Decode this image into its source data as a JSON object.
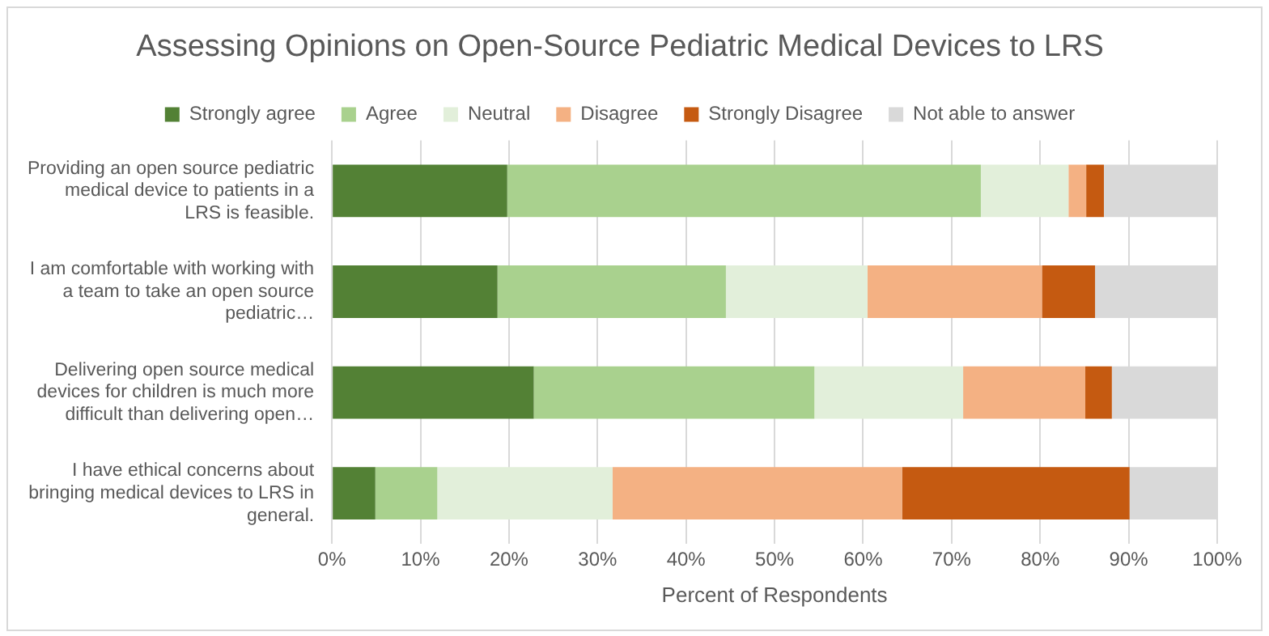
{
  "chart_data": {
    "type": "bar",
    "orientation": "horizontal",
    "stacked": true,
    "title": "Assessing Opinions on Open-Source Pediatric Medical Devices to LRS",
    "xlabel": "Percent of Respondents",
    "categories": [
      "Providing an open source pediatric medical device to patients in a LRS is feasible.",
      "I am comfortable with working with a team to take an open source pediatric…",
      "Delivering open source medical devices for children is much more difficult than delivering open…",
      "I have ethical concerns about bringing medical devices to LRS in general."
    ],
    "series": [
      {
        "name": "Strongly agree",
        "color": "#538135",
        "values": [
          19.8,
          18.7,
          22.8,
          4.9
        ]
      },
      {
        "name": "Agree",
        "color": "#a9d18e",
        "values": [
          53.5,
          25.8,
          31.7,
          7.0
        ]
      },
      {
        "name": "Neutral",
        "color": "#e2efda",
        "values": [
          9.9,
          16.0,
          16.8,
          19.8
        ]
      },
      {
        "name": "Disagree",
        "color": "#f4b183",
        "values": [
          2.0,
          19.7,
          13.8,
          32.7
        ]
      },
      {
        "name": "Strongly Disagree",
        "color": "#c55a11",
        "values": [
          2.0,
          6.0,
          3.0,
          25.7
        ]
      },
      {
        "name": "Not able to answer",
        "color": "#d9d9d9",
        "values": [
          12.8,
          13.8,
          11.9,
          9.9
        ]
      }
    ],
    "xlim": [
      0,
      100
    ],
    "xticks": [
      {
        "value": 0,
        "label": "0%"
      },
      {
        "value": 10,
        "label": "10%"
      },
      {
        "value": 20,
        "label": "20%"
      },
      {
        "value": 30,
        "label": "30%"
      },
      {
        "value": 40,
        "label": "40%"
      },
      {
        "value": 50,
        "label": "50%"
      },
      {
        "value": 60,
        "label": "60%"
      },
      {
        "value": 70,
        "label": "70%"
      },
      {
        "value": 80,
        "label": "80%"
      },
      {
        "value": 90,
        "label": "90%"
      },
      {
        "value": 100,
        "label": "100%"
      }
    ],
    "grid": "x",
    "legend": "top"
  }
}
